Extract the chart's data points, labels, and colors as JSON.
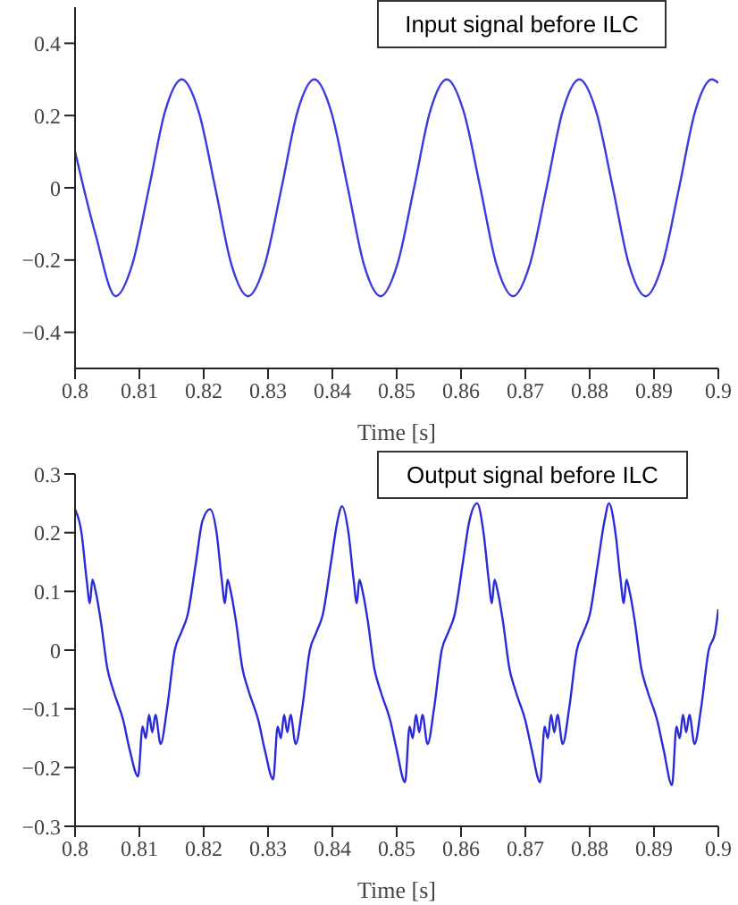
{
  "chart_data": [
    {
      "type": "line",
      "title": "Input signal before ILC",
      "xlabel": "Time [s]",
      "xlim": [
        0.8,
        0.9
      ],
      "xticks": [
        0.8,
        0.81,
        0.82,
        0.83,
        0.84,
        0.85,
        0.86,
        0.87,
        0.88,
        0.89,
        0.9
      ],
      "ylim": [
        -0.5,
        0.5
      ],
      "yticks": [
        {
          "value": -0.4,
          "label": "−0.4"
        },
        {
          "value": -0.2,
          "label": "−0.2"
        },
        0,
        0.2,
        0.4
      ],
      "grid": false,
      "legend": false,
      "series": [
        {
          "color": "#3a3ae0",
          "x": [
            0.8,
            0.8032,
            0.8063,
            0.8089,
            0.8115,
            0.814,
            0.8166,
            0.8192,
            0.8218,
            0.8243,
            0.8269,
            0.8295,
            0.8321,
            0.8346,
            0.8372,
            0.8398,
            0.8424,
            0.8449,
            0.8475,
            0.8501,
            0.8527,
            0.8552,
            0.8578,
            0.8604,
            0.863,
            0.8655,
            0.8681,
            0.8707,
            0.8733,
            0.8758,
            0.8784,
            0.881,
            0.8836,
            0.8861,
            0.8887,
            0.8913,
            0.8939,
            0.8964,
            0.899,
            0.9
          ],
          "values": [
            0.1,
            -0.13,
            -0.3,
            -0.212,
            0,
            0.212,
            0.3,
            0.212,
            0,
            -0.212,
            -0.3,
            -0.212,
            0,
            0.212,
            0.3,
            0.212,
            0,
            -0.212,
            -0.3,
            -0.212,
            0,
            0.212,
            0.3,
            0.212,
            0,
            -0.212,
            -0.3,
            -0.212,
            0,
            0.212,
            0.3,
            0.212,
            0,
            -0.212,
            -0.3,
            -0.212,
            0,
            0.212,
            0.3,
            0.29
          ]
        }
      ]
    },
    {
      "type": "line",
      "title": "Output signal before ILC",
      "xlabel": "Time [s]",
      "xlim": [
        0.8,
        0.9
      ],
      "xticks": [
        0.8,
        0.81,
        0.82,
        0.83,
        0.84,
        0.85,
        0.86,
        0.87,
        0.88,
        0.89,
        0.9
      ],
      "ylim": [
        -0.3,
        0.3
      ],
      "yticks": [
        {
          "value": -0.3,
          "label": "−0.3"
        },
        {
          "value": -0.2,
          "label": "−0.2"
        },
        {
          "value": -0.1,
          "label": "−0.1"
        },
        0,
        0.1,
        0.2,
        0.3
      ],
      "grid": false,
      "legend": false,
      "series": [
        {
          "color": "#2a2ad8",
          "x": [
            0.8,
            0.801,
            0.8018,
            0.8023,
            0.8027,
            0.8032,
            0.804,
            0.805,
            0.806,
            0.8075,
            0.8085,
            0.8098,
            0.8105,
            0.811,
            0.8115,
            0.812,
            0.8125,
            0.8133,
            0.8143,
            0.8155,
            0.8165,
            0.8175,
            0.8188,
            0.8198,
            0.821,
            0.822,
            0.8228,
            0.8233,
            0.8237,
            0.8242,
            0.825,
            0.826,
            0.827,
            0.8285,
            0.8295,
            0.8308,
            0.8315,
            0.832,
            0.8325,
            0.833,
            0.8335,
            0.8343,
            0.8353,
            0.8365,
            0.8375,
            0.8385,
            0.8398,
            0.8408,
            0.8415,
            0.8425,
            0.8433,
            0.8438,
            0.8442,
            0.8447,
            0.8455,
            0.8465,
            0.8475,
            0.849,
            0.85,
            0.8513,
            0.852,
            0.8525,
            0.853,
            0.8535,
            0.854,
            0.8548,
            0.8558,
            0.857,
            0.858,
            0.859,
            0.8603,
            0.8613,
            0.8625,
            0.8635,
            0.8643,
            0.8648,
            0.8652,
            0.8657,
            0.8665,
            0.8675,
            0.8685,
            0.87,
            0.871,
            0.8723,
            0.873,
            0.8735,
            0.874,
            0.8745,
            0.875,
            0.8758,
            0.8768,
            0.878,
            0.879,
            0.88,
            0.8813,
            0.8823,
            0.883,
            0.884,
            0.8848,
            0.8853,
            0.8857,
            0.8862,
            0.887,
            0.888,
            0.889,
            0.8905,
            0.8915,
            0.8928,
            0.8935,
            0.894,
            0.8945,
            0.895,
            0.8955,
            0.8963,
            0.8973,
            0.8985,
            0.8995,
            0.9
          ],
          "values": [
            0.24,
            0.2,
            0.12,
            0.08,
            0.12,
            0.1,
            0.05,
            -0.03,
            -0.07,
            -0.12,
            -0.17,
            -0.215,
            -0.13,
            -0.15,
            -0.11,
            -0.14,
            -0.11,
            -0.16,
            -0.1,
            0,
            0.03,
            0.06,
            0.15,
            0.22,
            0.24,
            0.2,
            0.12,
            0.08,
            0.12,
            0.1,
            0.05,
            -0.03,
            -0.07,
            -0.12,
            -0.17,
            -0.22,
            -0.13,
            -0.15,
            -0.11,
            -0.14,
            -0.11,
            -0.16,
            -0.1,
            0,
            0.03,
            0.06,
            0.15,
            0.22,
            0.245,
            0.2,
            0.12,
            0.08,
            0.12,
            0.1,
            0.05,
            -0.03,
            -0.07,
            -0.12,
            -0.17,
            -0.225,
            -0.13,
            -0.15,
            -0.11,
            -0.14,
            -0.11,
            -0.16,
            -0.1,
            0,
            0.03,
            0.06,
            0.15,
            0.22,
            0.25,
            0.2,
            0.12,
            0.08,
            0.12,
            0.1,
            0.05,
            -0.03,
            -0.07,
            -0.12,
            -0.17,
            -0.225,
            -0.13,
            -0.15,
            -0.11,
            -0.14,
            -0.11,
            -0.16,
            -0.1,
            0,
            0.03,
            0.06,
            0.15,
            0.22,
            0.25,
            0.2,
            0.12,
            0.08,
            0.12,
            0.1,
            0.05,
            -0.03,
            -0.07,
            -0.12,
            -0.17,
            -0.23,
            -0.13,
            -0.15,
            -0.11,
            -0.14,
            -0.11,
            -0.16,
            -0.1,
            0,
            0.03,
            0.07
          ]
        }
      ]
    }
  ]
}
